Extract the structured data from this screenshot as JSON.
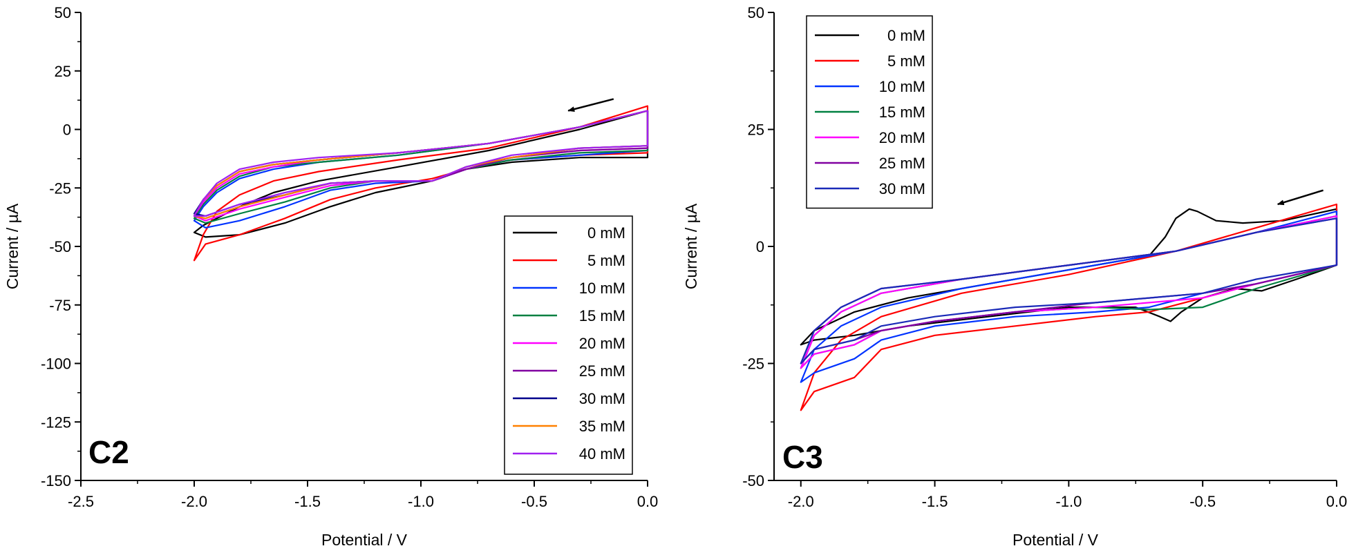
{
  "chart_data": [
    {
      "type": "line",
      "panel_label": "C2",
      "xlabel": "Potential / V",
      "ylabel": "Current / µA",
      "xlim": [
        -2.5,
        0.0
      ],
      "ylim": [
        -150,
        50
      ],
      "xticks": [
        -2.5,
        -2.0,
        -1.5,
        -1.0,
        -0.5,
        0.0
      ],
      "xtick_labels": [
        "-2.5",
        "-2.0",
        "-1.5",
        "-1.0",
        "-0.5",
        "0.0"
      ],
      "yticks": [
        50,
        25,
        0,
        -25,
        -50,
        -75,
        -100,
        -125,
        -150
      ],
      "ytick_labels": [
        "50",
        "25",
        "0",
        "-25",
        "-50",
        "-75",
        "-100",
        "-125",
        "-150"
      ],
      "grid": false,
      "legend_position": "bottom-right",
      "scan_arrow": {
        "from": [
          -0.15,
          13
        ],
        "to": [
          -0.35,
          8
        ]
      },
      "series": [
        {
          "name": "0 mM",
          "color": "#000000",
          "x": [
            0.0,
            -0.3,
            -0.7,
            -1.1,
            -1.45,
            -1.65,
            -1.8,
            -1.9,
            -1.96,
            -2.0,
            -1.95,
            -1.8,
            -1.6,
            -1.4,
            -1.2,
            -0.95,
            -0.8,
            -0.6,
            -0.3,
            0.0
          ],
          "y": [
            8,
            0,
            -9,
            -16,
            -22,
            -27,
            -33,
            -38,
            -41,
            -44,
            -46,
            -45,
            -40,
            -33,
            -27,
            -22,
            -17,
            -14,
            -12,
            -12
          ]
        },
        {
          "name": "5 mM",
          "color": "#ff0000",
          "x": [
            0.0,
            -0.3,
            -0.7,
            -1.1,
            -1.45,
            -1.65,
            -1.8,
            -1.9,
            -1.96,
            -2.0,
            -1.95,
            -1.8,
            -1.6,
            -1.4,
            -1.2,
            -0.95,
            -0.8,
            -0.6,
            -0.3,
            0.0
          ],
          "y": [
            10,
            1,
            -8,
            -13,
            -18,
            -22,
            -28,
            -35,
            -45,
            -56,
            -49,
            -45,
            -38,
            -30,
            -25,
            -21,
            -17,
            -13,
            -11,
            -10
          ]
        },
        {
          "name": "10 mM",
          "color": "#0033ff",
          "x": [
            0.0,
            -0.3,
            -0.7,
            -1.1,
            -1.45,
            -1.65,
            -1.8,
            -1.9,
            -1.96,
            -2.0,
            -1.95,
            -1.8,
            -1.6,
            -1.4,
            -1.2,
            -0.95,
            -0.8,
            -0.6,
            -0.3,
            0.0
          ],
          "y": [
            8,
            1,
            -6,
            -11,
            -14,
            -17,
            -21,
            -27,
            -33,
            -39,
            -42,
            -39,
            -33,
            -26,
            -23,
            -22,
            -17,
            -13,
            -11,
            -9
          ]
        },
        {
          "name": "15 mM",
          "color": "#008040",
          "x": [
            0.0,
            -0.3,
            -0.7,
            -1.1,
            -1.45,
            -1.65,
            -1.8,
            -1.9,
            -1.96,
            -2.0,
            -1.95,
            -1.8,
            -1.6,
            -1.4,
            -1.2,
            -0.95,
            -0.8,
            -0.6,
            -0.3,
            0.0
          ],
          "y": [
            8,
            1,
            -6,
            -11,
            -14,
            -16,
            -20,
            -26,
            -32,
            -38,
            -40,
            -36,
            -31,
            -25,
            -22,
            -22,
            -17,
            -13,
            -10,
            -9
          ]
        },
        {
          "name": "20 mM",
          "color": "#ff00ff",
          "x": [
            0.0,
            -0.3,
            -0.7,
            -1.1,
            -1.45,
            -1.65,
            -1.8,
            -1.9,
            -1.96,
            -2.0,
            -1.95,
            -1.8,
            -1.6,
            -1.4,
            -1.2,
            -0.95,
            -0.8,
            -0.6,
            -0.3,
            0.0
          ],
          "y": [
            8,
            1,
            -6,
            -10,
            -13,
            -16,
            -19,
            -25,
            -31,
            -37,
            -39,
            -34,
            -29,
            -24,
            -22,
            -22,
            -17,
            -12,
            -9,
            -8
          ]
        },
        {
          "name": "25 mM",
          "color": "#8000a0",
          "x": [
            0.0,
            -0.3,
            -0.7,
            -1.1,
            -1.45,
            -1.65,
            -1.8,
            -1.9,
            -1.96,
            -2.0,
            -1.95,
            -1.8,
            -1.6,
            -1.4,
            -1.2,
            -0.95,
            -0.8,
            -0.6,
            -0.3,
            0.0
          ],
          "y": [
            8,
            1,
            -6,
            -10,
            -13,
            -15,
            -18,
            -24,
            -30,
            -37,
            -38,
            -33,
            -28,
            -23,
            -22,
            -22,
            -17,
            -12,
            -9,
            -8
          ]
        },
        {
          "name": "30 mM",
          "color": "#00008b",
          "x": [
            0.0,
            -0.3,
            -0.7,
            -1.1,
            -1.45,
            -1.65,
            -1.8,
            -1.9,
            -1.96,
            -2.0,
            -1.95,
            -1.8,
            -1.6,
            -1.4,
            -1.2,
            -0.95,
            -0.8,
            -0.6,
            -0.3,
            0.0
          ],
          "y": [
            8,
            1,
            -6,
            -10,
            -13,
            -15,
            -18,
            -24,
            -30,
            -36,
            -37,
            -32,
            -28,
            -23,
            -22,
            -22,
            -16,
            -12,
            -8,
            -7
          ]
        },
        {
          "name": "35 mM",
          "color": "#ff8000",
          "x": [
            0.0,
            -0.3,
            -0.7,
            -1.1,
            -1.45,
            -1.65,
            -1.8,
            -1.9,
            -1.96,
            -2.0,
            -1.95,
            -1.8,
            -1.6,
            -1.4,
            -1.2,
            -0.95,
            -0.8,
            -0.6,
            -0.3,
            0.0
          ],
          "y": [
            8,
            1,
            -6,
            -10,
            -13,
            -15,
            -18,
            -24,
            -30,
            -37,
            -38,
            -33,
            -28,
            -23,
            -22,
            -22,
            -16,
            -12,
            -8,
            -7
          ]
        },
        {
          "name": "40 mM",
          "color": "#a020f0",
          "x": [
            0.0,
            -0.3,
            -0.7,
            -1.1,
            -1.45,
            -1.65,
            -1.8,
            -1.9,
            -1.96,
            -2.0,
            -1.95,
            -1.8,
            -1.6,
            -1.4,
            -1.2,
            -0.95,
            -0.8,
            -0.6,
            -0.3,
            0.0
          ],
          "y": [
            8,
            1,
            -6,
            -10,
            -12,
            -14,
            -17,
            -23,
            -30,
            -37,
            -37,
            -32,
            -27,
            -23,
            -22,
            -22,
            -16,
            -11,
            -8,
            -7
          ]
        }
      ]
    },
    {
      "type": "line",
      "panel_label": "C3",
      "xlabel": "Potential / V",
      "ylabel": "Current / µA",
      "xlim": [
        -2.1,
        0.0
      ],
      "ylim": [
        -50,
        50
      ],
      "xticks": [
        -2.0,
        -1.5,
        -1.0,
        -0.5,
        0.0
      ],
      "xtick_labels": [
        "-2.0",
        "-1.5",
        "-1.0",
        "-0.5",
        "0.0"
      ],
      "yticks": [
        50,
        25,
        0,
        -25,
        -50
      ],
      "ytick_labels": [
        "50",
        "25",
        "0",
        "-25",
        "-50"
      ],
      "grid": false,
      "legend_position": "top-left",
      "scan_arrow": {
        "from": [
          -0.05,
          12
        ],
        "to": [
          -0.22,
          9
        ]
      },
      "series": [
        {
          "name": "0 mM",
          "color": "#000000",
          "x": [
            0.0,
            -0.2,
            -0.35,
            -0.45,
            -0.52,
            -0.55,
            -0.6,
            -0.64,
            -0.7,
            -1.0,
            -1.3,
            -1.6,
            -1.8,
            -1.95,
            -2.0,
            -1.95,
            -1.8,
            -1.6,
            -1.3,
            -1.0,
            -0.75,
            -0.66,
            -0.62,
            -0.58,
            -0.5,
            -0.38,
            -0.28,
            -0.15,
            0.0
          ],
          "y": [
            8,
            5.5,
            5,
            5.5,
            7.5,
            8,
            6,
            2,
            -2,
            -5,
            -8,
            -11,
            -14,
            -18,
            -21,
            -20,
            -19,
            -17,
            -15,
            -13,
            -13,
            -15,
            -16,
            -14,
            -11,
            -9,
            -9.5,
            -7,
            -4
          ]
        },
        {
          "name": "5 mM",
          "color": "#ff0000",
          "x": [
            0.0,
            -0.3,
            -0.6,
            -1.0,
            -1.4,
            -1.7,
            -1.85,
            -1.95,
            -2.0,
            -1.95,
            -1.8,
            -1.7,
            -1.5,
            -1.2,
            -0.9,
            -0.7,
            -0.5,
            -0.3,
            0.0
          ],
          "y": [
            9,
            4,
            -1,
            -6,
            -10,
            -15,
            -20,
            -27,
            -35,
            -31,
            -28,
            -22,
            -19,
            -17,
            -15,
            -14,
            -11,
            -8,
            -4
          ]
        },
        {
          "name": "10 mM",
          "color": "#0033ff",
          "x": [
            0.0,
            -0.3,
            -0.6,
            -1.0,
            -1.4,
            -1.7,
            -1.85,
            -1.95,
            -2.0,
            -1.95,
            -1.8,
            -1.7,
            -1.5,
            -1.2,
            -0.9,
            -0.7,
            -0.5,
            -0.3,
            0.0
          ],
          "y": [
            7.5,
            3,
            -1,
            -5,
            -9,
            -13,
            -17,
            -22,
            -29,
            -27,
            -24,
            -20,
            -17,
            -15,
            -14,
            -13,
            -10,
            -8,
            -4
          ]
        },
        {
          "name": "15 mM",
          "color": "#008040",
          "x": [
            0.0,
            -0.3,
            -0.6,
            -1.0,
            -1.4,
            -1.7,
            -1.85,
            -1.95,
            -2.0,
            -1.95,
            -1.8,
            -1.7,
            -1.5,
            -1.2,
            -0.9,
            -0.7,
            -0.5,
            -0.3,
            0.0
          ],
          "y": [
            6.5,
            3,
            -1,
            -4,
            -7,
            -10,
            -14,
            -19,
            -26,
            -23,
            -21,
            -18,
            -16,
            -14,
            -13,
            -13.5,
            -13,
            -9,
            -4
          ]
        },
        {
          "name": "20 mM",
          "color": "#ff00ff",
          "x": [
            0.0,
            -0.3,
            -0.6,
            -1.0,
            -1.4,
            -1.7,
            -1.85,
            -1.95,
            -2.0,
            -1.95,
            -1.8,
            -1.7,
            -1.5,
            -1.2,
            -0.9,
            -0.7,
            -0.5,
            -0.3,
            0.0
          ],
          "y": [
            6.5,
            3,
            -1,
            -4,
            -7,
            -10,
            -14,
            -19,
            -26,
            -23,
            -21,
            -18,
            -16,
            -14,
            -13,
            -12,
            -11,
            -8,
            -4
          ]
        },
        {
          "name": "25 mM",
          "color": "#8000a0",
          "x": [
            0.0,
            -0.3,
            -0.6,
            -1.0,
            -1.4,
            -1.7,
            -1.85,
            -1.95,
            -2.0,
            -1.95,
            -1.8,
            -1.7,
            -1.5,
            -1.2,
            -0.9,
            -0.7,
            -0.5,
            -0.3,
            0.0
          ],
          "y": [
            6,
            3,
            -1,
            -4,
            -7,
            -9,
            -13,
            -18,
            -25,
            -22,
            -20,
            -18,
            -16,
            -14,
            -12,
            -11,
            -10,
            -8,
            -4
          ]
        },
        {
          "name": "30 mM",
          "color": "#1a2ab8",
          "x": [
            0.0,
            -0.3,
            -0.6,
            -1.0,
            -1.4,
            -1.7,
            -1.85,
            -1.95,
            -2.0,
            -1.95,
            -1.8,
            -1.7,
            -1.5,
            -1.2,
            -0.9,
            -0.7,
            -0.5,
            -0.3,
            0.0
          ],
          "y": [
            6,
            3,
            -1,
            -4,
            -7,
            -9,
            -13,
            -18,
            -25,
            -22,
            -20,
            -17,
            -15,
            -13,
            -12,
            -11,
            -10,
            -7,
            -4
          ]
        }
      ]
    }
  ]
}
